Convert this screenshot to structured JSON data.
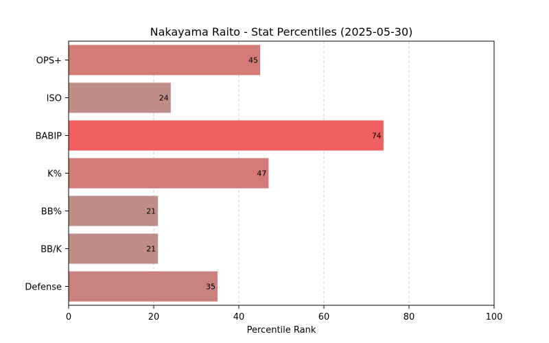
{
  "chart_data": {
    "type": "bar",
    "orientation": "horizontal",
    "title": "Nakayama Raito - Stat Percentiles (2025-05-30)",
    "xlabel": "Percentile Rank",
    "ylabel": "",
    "xlim": [
      0,
      100
    ],
    "xticks": [
      0,
      20,
      40,
      60,
      80,
      100
    ],
    "grid": "x-dashed",
    "categories": [
      "OPS+",
      "ISO",
      "BABIP",
      "K%",
      "BB%",
      "BB/K",
      "Defense"
    ],
    "values": [
      45,
      24,
      74,
      47,
      21,
      21,
      35
    ],
    "colors": [
      "#d47b78",
      "#bf8d88",
      "#ef5f5f",
      "#d47b78",
      "#bf8d88",
      "#bf8d88",
      "#c98280"
    ]
  }
}
